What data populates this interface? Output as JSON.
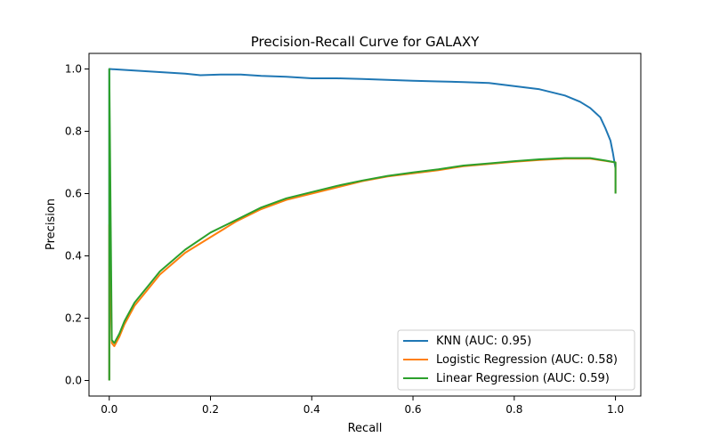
{
  "chart_data": {
    "type": "line",
    "title": "Precision-Recall Curve for GALAXY",
    "xlabel": "Recall",
    "ylabel": "Precision",
    "xlim": [
      -0.04,
      1.05
    ],
    "ylim": [
      -0.05,
      1.05
    ],
    "xticks": [
      "0.0",
      "0.2",
      "0.4",
      "0.6",
      "0.8",
      "1.0"
    ],
    "yticks": [
      "0.0",
      "0.2",
      "0.4",
      "0.6",
      "0.8",
      "1.0"
    ],
    "xtick_values": [
      0.0,
      0.2,
      0.4,
      0.6,
      0.8,
      1.0
    ],
    "ytick_values": [
      0.0,
      0.2,
      0.4,
      0.6,
      0.8,
      1.0
    ],
    "grid": false,
    "legend_position": "lower-right",
    "series": [
      {
        "name": "KNN (AUC: 0.95)",
        "color": "#1f77b4",
        "x": [
          0,
          0,
          0.05,
          0.1,
          0.15,
          0.18,
          0.22,
          0.26,
          0.3,
          0.35,
          0.4,
          0.45,
          0.5,
          0.55,
          0.6,
          0.65,
          0.7,
          0.75,
          0.8,
          0.85,
          0.9,
          0.93,
          0.95,
          0.97,
          0.98,
          0.99,
          0.995,
          1.0
        ],
        "y": [
          0.0,
          1.0,
          0.995,
          0.99,
          0.985,
          0.98,
          0.982,
          0.982,
          0.978,
          0.975,
          0.97,
          0.97,
          0.968,
          0.965,
          0.962,
          0.96,
          0.958,
          0.955,
          0.945,
          0.935,
          0.915,
          0.895,
          0.875,
          0.845,
          0.81,
          0.77,
          0.73,
          0.68
        ]
      },
      {
        "name": "Logistic Regression (AUC: 0.58)",
        "color": "#ff7f0e",
        "x": [
          0,
          0,
          0.005,
          0.01,
          0.02,
          0.03,
          0.05,
          0.08,
          0.1,
          0.15,
          0.2,
          0.25,
          0.3,
          0.35,
          0.4,
          0.45,
          0.5,
          0.55,
          0.6,
          0.65,
          0.7,
          0.75,
          0.8,
          0.85,
          0.9,
          0.95,
          0.98,
          1.0,
          1.0
        ],
        "y": [
          0.0,
          0.5,
          0.12,
          0.11,
          0.14,
          0.18,
          0.24,
          0.3,
          0.34,
          0.41,
          0.46,
          0.51,
          0.55,
          0.58,
          0.6,
          0.62,
          0.64,
          0.655,
          0.665,
          0.675,
          0.688,
          0.695,
          0.702,
          0.708,
          0.712,
          0.712,
          0.705,
          0.7,
          0.6
        ]
      },
      {
        "name": "Linear Regression (AUC: 0.59)",
        "color": "#2ca02c",
        "x": [
          0,
          0,
          0.005,
          0.01,
          0.02,
          0.03,
          0.05,
          0.08,
          0.1,
          0.15,
          0.2,
          0.25,
          0.3,
          0.35,
          0.4,
          0.45,
          0.5,
          0.55,
          0.6,
          0.65,
          0.7,
          0.75,
          0.8,
          0.85,
          0.9,
          0.95,
          0.98,
          1.0,
          1.0
        ],
        "y": [
          0.0,
          1.0,
          0.13,
          0.12,
          0.15,
          0.19,
          0.25,
          0.31,
          0.35,
          0.42,
          0.475,
          0.515,
          0.555,
          0.585,
          0.605,
          0.625,
          0.642,
          0.657,
          0.668,
          0.678,
          0.69,
          0.697,
          0.704,
          0.71,
          0.714,
          0.714,
          0.706,
          0.7,
          0.6
        ]
      }
    ]
  }
}
